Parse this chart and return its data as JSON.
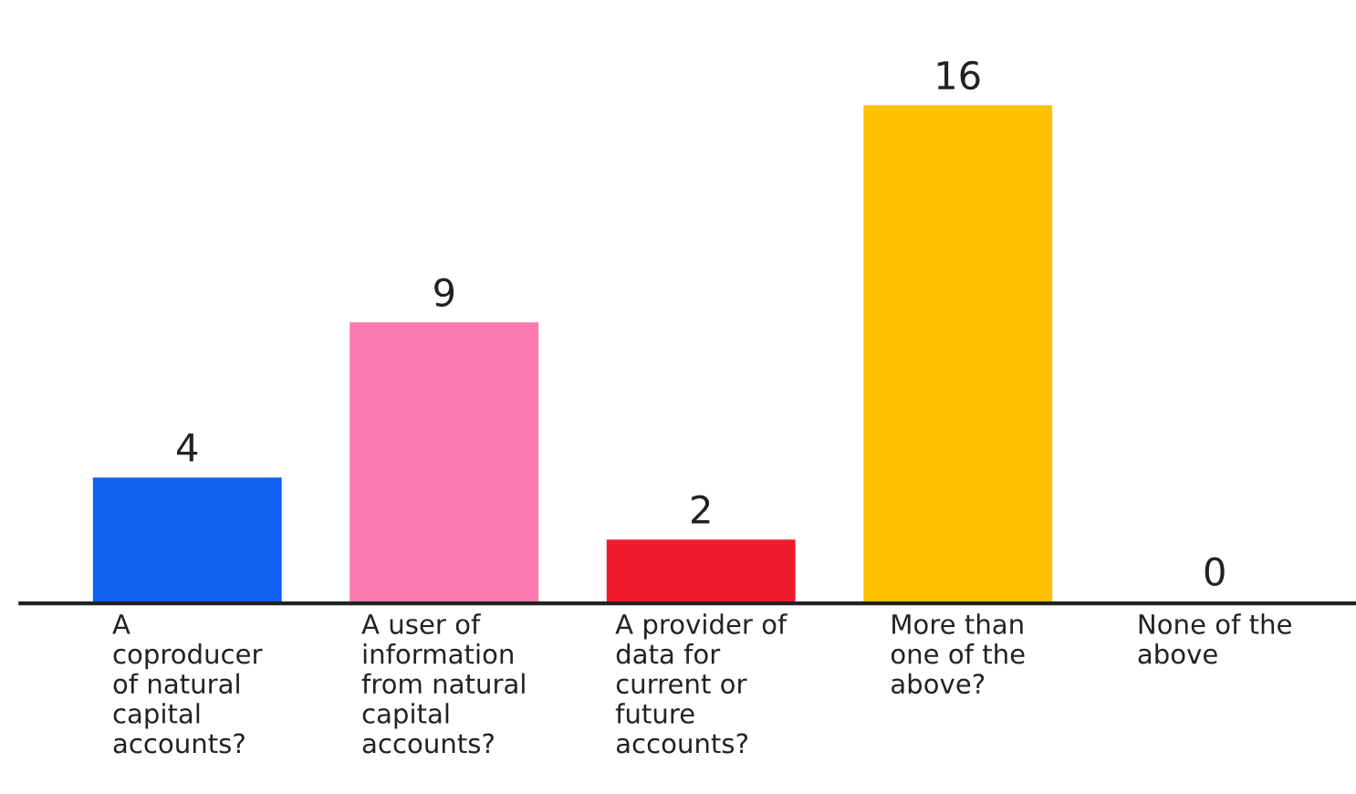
{
  "chart_data": {
    "type": "bar",
    "categories": [
      "A\ncoproducer\nof natural\ncapital\naccounts?",
      "A user of\ninformation\nfrom natural\ncapital\naccounts?",
      "A provider of\ndata for\ncurrent or\nfuture\naccounts?",
      "More than\none of the\nabove?",
      "None of the\nabove"
    ],
    "values": [
      4,
      9,
      2,
      16,
      0
    ],
    "colors": [
      "#0f62f2",
      "#fb78ad",
      "#ef1c2c",
      "#ffc000",
      "#999999"
    ],
    "data_labels": true
  }
}
